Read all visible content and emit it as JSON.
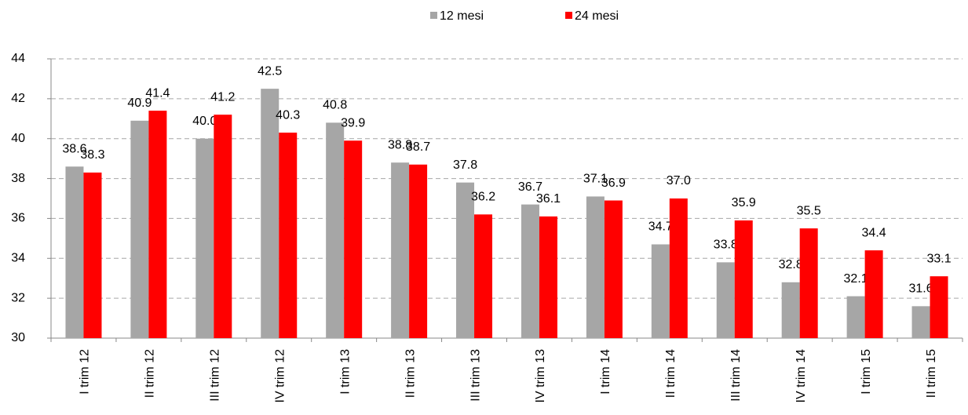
{
  "chart_data": {
    "type": "bar",
    "categories": [
      "I trim 12",
      "II trim 12",
      "III trim 12",
      "IV trim 12",
      "I trim 13",
      "II trim 13",
      "III trim 13",
      "IV trim 13",
      "I trim 14",
      "II trim 14",
      "III trim 14",
      "IV trim 14",
      "I trim 15",
      "II trim 15"
    ],
    "series": [
      {
        "name": "12 mesi",
        "color": "#a6a6a6",
        "values": [
          38.6,
          40.9,
          40.0,
          42.5,
          40.8,
          38.8,
          37.8,
          36.7,
          37.1,
          34.7,
          33.8,
          32.8,
          32.1,
          31.6
        ],
        "value_labels": [
          "38.6",
          "40.9",
          "40.0",
          "42.5",
          "40.8",
          "38.8",
          "37.8",
          "36.7",
          "37.1",
          "34.7",
          "33.8",
          "32.8",
          "32.1",
          "31.6"
        ]
      },
      {
        "name": "24 mesi",
        "color": "#ff0000",
        "values": [
          38.3,
          41.4,
          41.2,
          40.3,
          39.9,
          38.7,
          36.2,
          36.1,
          36.9,
          37.0,
          35.9,
          35.5,
          34.4,
          33.1
        ],
        "value_labels": [
          "38.3",
          "41.4",
          "41.2",
          "40.3",
          "39.9",
          "38.7",
          "36.2",
          "36.1",
          "36.9",
          "37.0",
          "35.9",
          "35.5",
          "34.4",
          "33.1"
        ]
      }
    ],
    "ylim": [
      30,
      44
    ],
    "yticks": [
      30,
      32,
      34,
      36,
      38,
      40,
      42,
      44
    ],
    "grid": true,
    "legend": "top"
  }
}
